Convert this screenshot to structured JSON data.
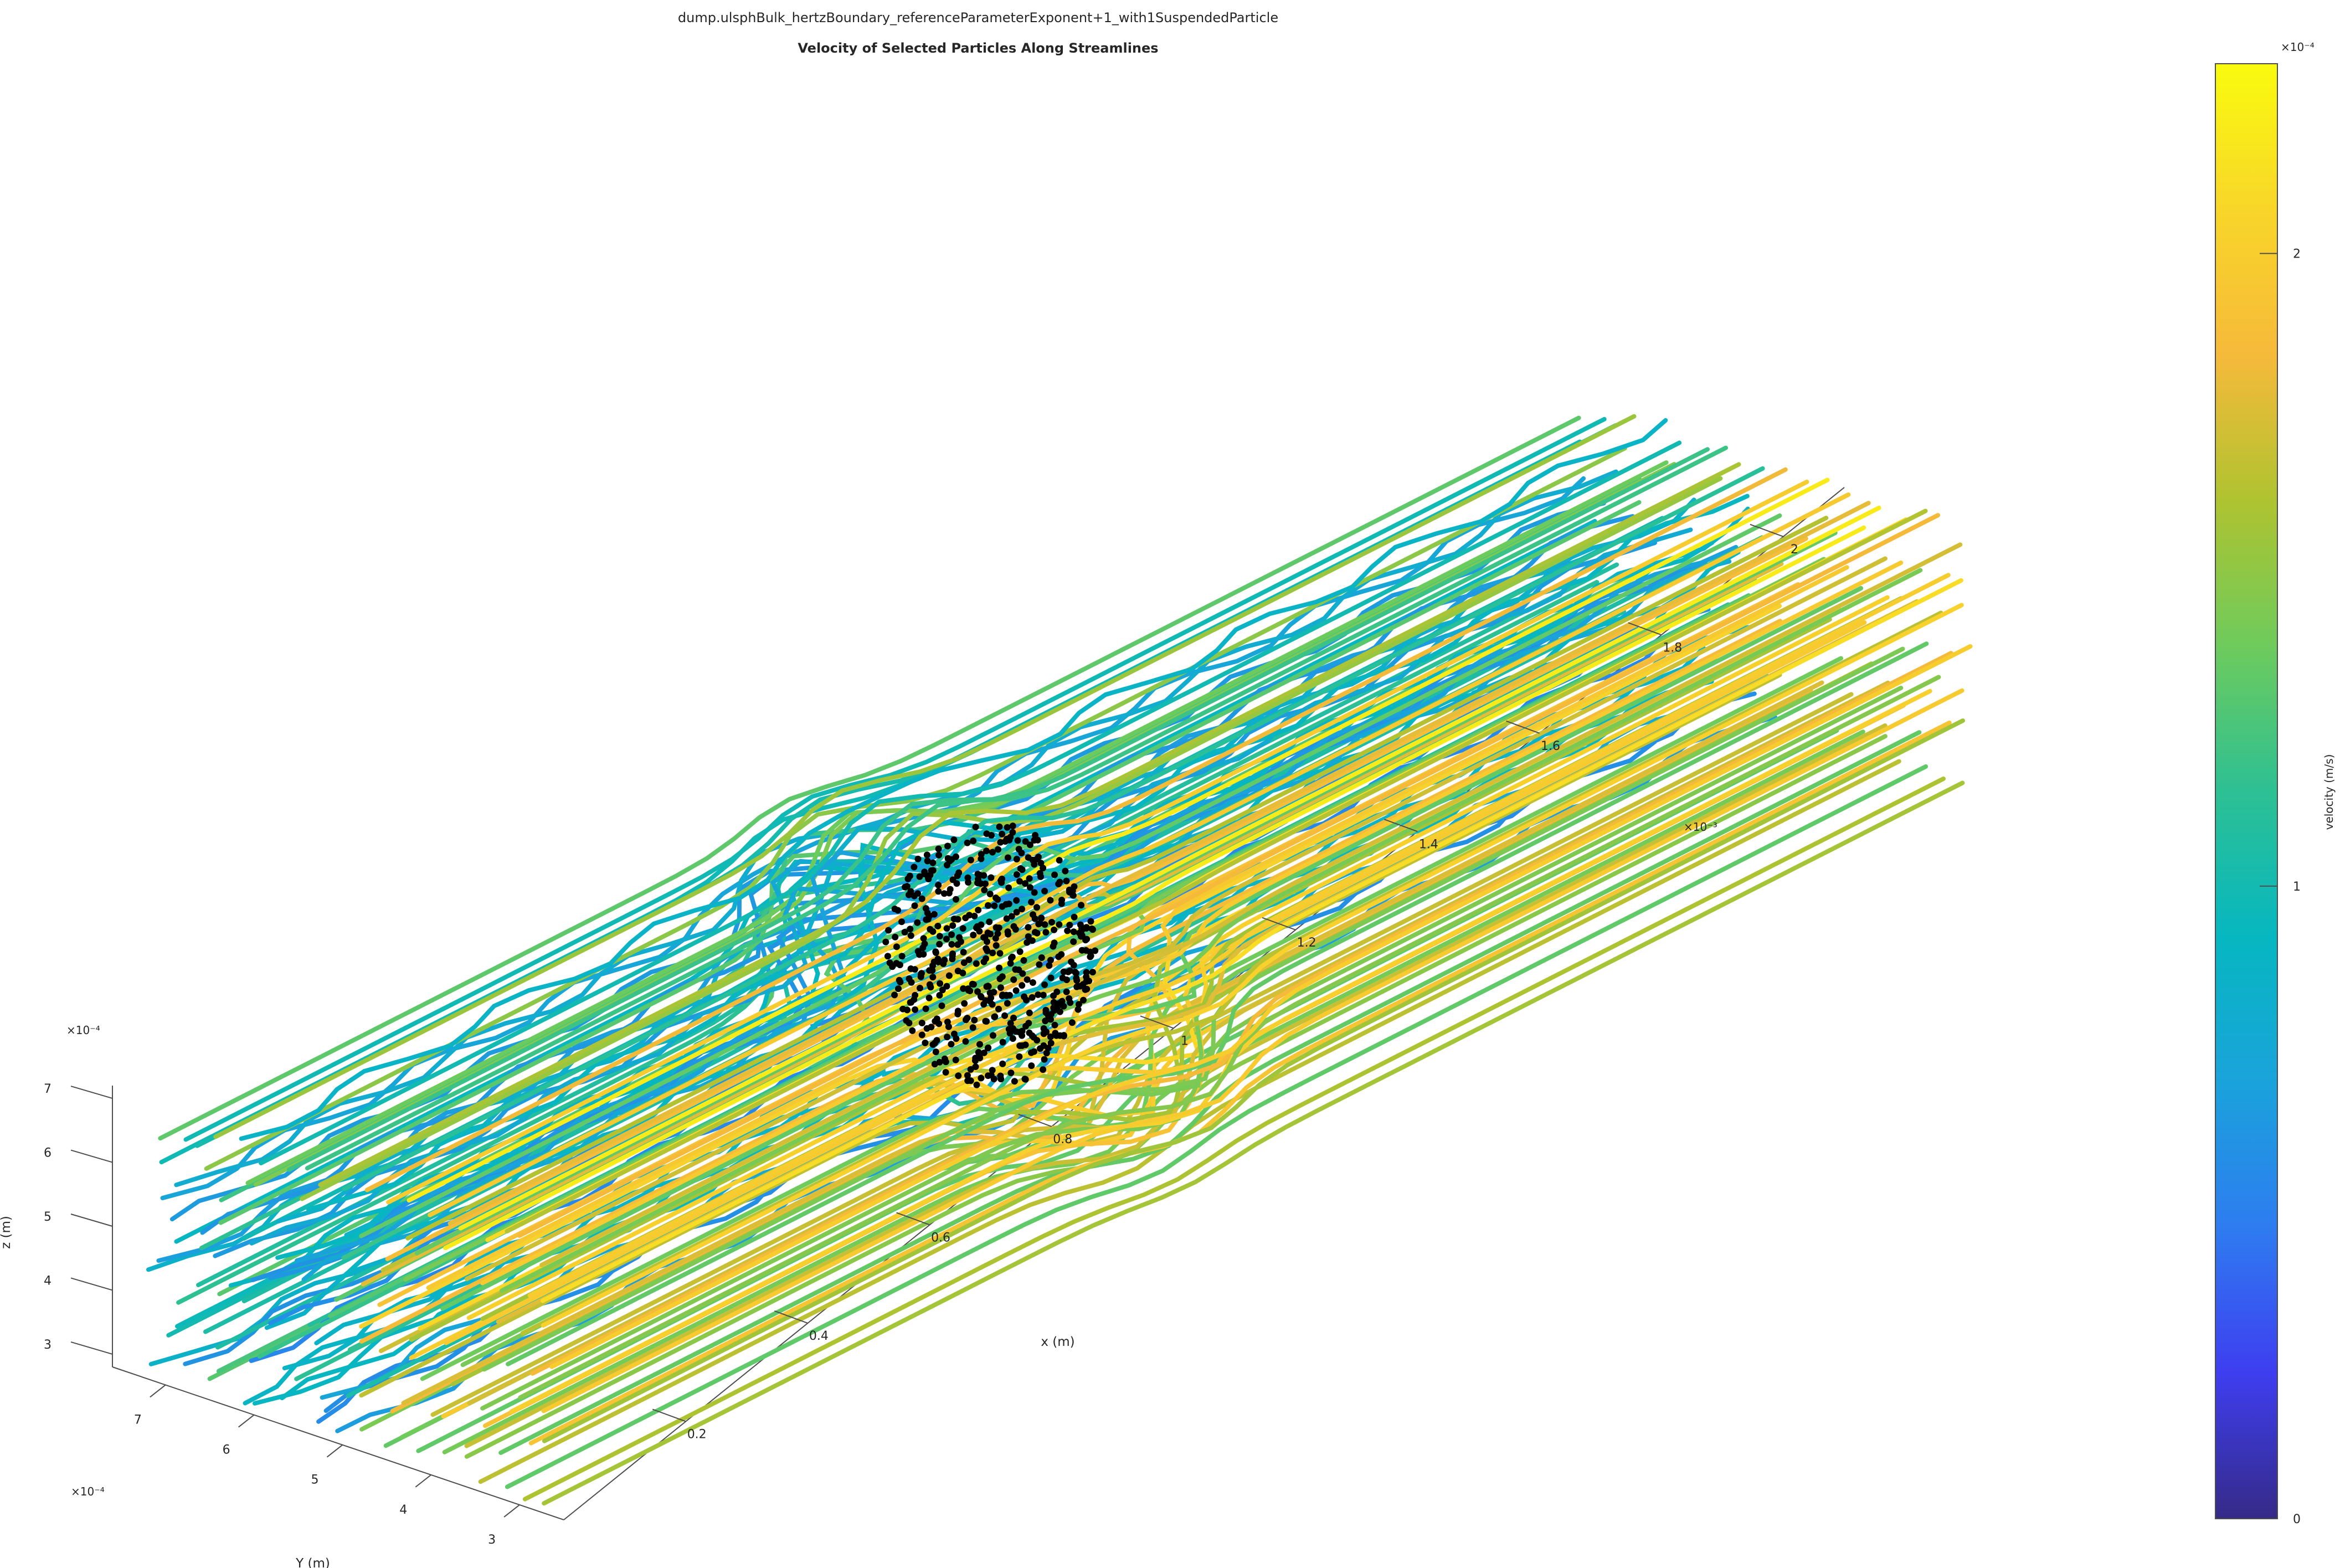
{
  "chart_data": {
    "type": "streamline-3d",
    "supertitle": "dump.ulsphBulk_hertzBoundary_referenceParameterExponent+1_with1SuspendedParticle",
    "title": "Velocity of Selected Particles Along Streamlines",
    "x_axis": {
      "label": "x (m)",
      "multiplier": "×10⁻³",
      "ticks": [
        "0.2",
        "0.4",
        "0.6",
        "0.8",
        "1",
        "1.2",
        "1.4",
        "1.6",
        "1.8",
        "2"
      ],
      "tick_values": [
        0.2,
        0.4,
        0.6,
        0.8,
        1.0,
        1.2,
        1.4,
        1.6,
        1.8,
        2.0
      ],
      "range": [
        0.0,
        2.1
      ]
    },
    "y_axis": {
      "label": "Y (m)",
      "multiplier": "×10⁻⁴",
      "ticks": [
        "3",
        "4",
        "5",
        "6",
        "7"
      ],
      "tick_values": [
        3,
        4,
        5,
        6,
        7
      ],
      "range": [
        2.5,
        7.6
      ]
    },
    "z_axis": {
      "label": "z (m)",
      "multiplier": "×10⁻⁴",
      "ticks": [
        "3",
        "4",
        "5",
        "6",
        "7"
      ],
      "tick_values": [
        3,
        4,
        5,
        6,
        7
      ],
      "range": [
        2.8,
        7.2
      ]
    },
    "colorbar": {
      "label": "velocity (m/s)",
      "multiplier": "×10⁻⁴",
      "ticks": [
        "0",
        "1",
        "2"
      ],
      "tick_values": [
        0,
        1,
        2
      ],
      "range": [
        0,
        2.3
      ],
      "colormap": "parula",
      "stops": [
        "#352a87",
        "#3e3ef0",
        "#2e7cf0",
        "#1aa3db",
        "#06b7c0",
        "#2dc093",
        "#6ecb5c",
        "#afc330",
        "#f6ba3a",
        "#f8d629",
        "#f9fb0e"
      ]
    },
    "suspended_particle": {
      "center": [
        0.9,
        5.0,
        5.0
      ],
      "color": "#000000"
    },
    "streamlines": {
      "flow_direction": "+x",
      "x_extent": [
        0.0,
        2.0
      ],
      "y_extent": [
        2.8,
        7.2
      ],
      "z_extent": [
        2.8,
        7.0
      ]
    }
  }
}
